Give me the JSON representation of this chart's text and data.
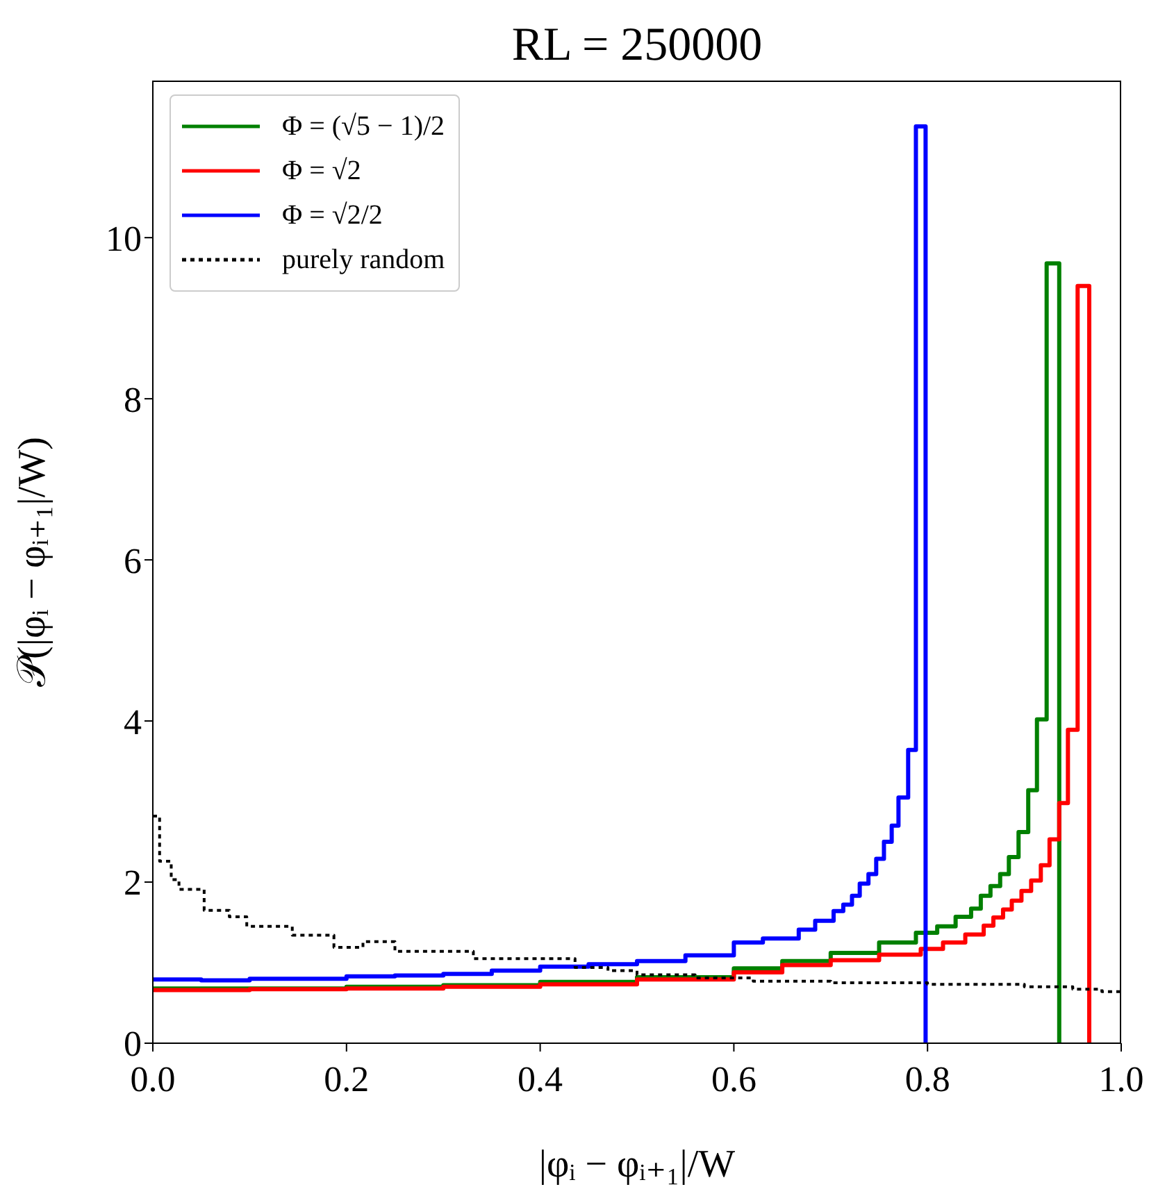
{
  "chart_data": {
    "type": "step",
    "title": "RL = 250000",
    "xlabel": "|φᵢ − φᵢ₊₁|/W",
    "ylabel": "𝒫(|φᵢ − φᵢ₊₁|/W)",
    "xlim": [
      0,
      1
    ],
    "ylim": [
      0,
      11.95
    ],
    "xticks": [
      {
        "value": 0,
        "label": "0.0"
      },
      {
        "value": 0.2,
        "label": "0.2"
      },
      {
        "value": 0.4,
        "label": "0.4"
      },
      {
        "value": 0.6,
        "label": "0.6"
      },
      {
        "value": 0.8,
        "label": "0.8"
      },
      {
        "value": 1,
        "label": "1.0"
      }
    ],
    "yticks": [
      0,
      2,
      4,
      6,
      8,
      10
    ],
    "legend": "top left",
    "marker": "none",
    "series": [
      {
        "name": "Φ = (√5 − 1)/2",
        "color": "#008000",
        "line_style": "solid",
        "x": [
          0,
          0.1,
          0.2,
          0.3,
          0.4,
          0.5,
          0.6,
          0.65,
          0.7,
          0.75,
          0.788,
          0.81,
          0.829,
          0.845,
          0.855,
          0.865,
          0.875,
          0.884,
          0.894,
          0.904,
          0.913,
          0.923,
          0.936
        ],
        "values": [
          0.68,
          0.68,
          0.7,
          0.72,
          0.76,
          0.82,
          0.93,
          1.02,
          1.12,
          1.25,
          1.37,
          1.45,
          1.57,
          1.67,
          1.83,
          1.95,
          2.1,
          2.31,
          2.62,
          3.14,
          4.02,
          9.68,
          0
        ]
      },
      {
        "name": "Φ = √2",
        "color": "#ff0000",
        "line_style": "solid",
        "x": [
          0,
          0.1,
          0.2,
          0.3,
          0.4,
          0.5,
          0.6,
          0.65,
          0.7,
          0.75,
          0.793,
          0.816,
          0.839,
          0.858,
          0.868,
          0.878,
          0.887,
          0.897,
          0.907,
          0.917,
          0.926,
          0.936,
          0.945,
          0.955,
          0.967
        ],
        "values": [
          0.66,
          0.67,
          0.68,
          0.7,
          0.73,
          0.79,
          0.88,
          0.97,
          1.03,
          1.1,
          1.17,
          1.25,
          1.35,
          1.46,
          1.56,
          1.66,
          1.77,
          1.89,
          2.02,
          2.21,
          2.53,
          2.98,
          3.89,
          9.4,
          0
        ]
      },
      {
        "name": "Φ = √2/2",
        "color": "#0000ff",
        "line_style": "solid",
        "x": [
          0,
          0.05,
          0.1,
          0.15,
          0.2,
          0.25,
          0.3,
          0.35,
          0.4,
          0.45,
          0.5,
          0.55,
          0.6,
          0.63,
          0.667,
          0.684,
          0.703,
          0.713,
          0.722,
          0.73,
          0.739,
          0.747,
          0.755,
          0.763,
          0.77,
          0.78,
          0.788,
          0.798
        ],
        "values": [
          0.79,
          0.78,
          0.8,
          0.8,
          0.83,
          0.84,
          0.86,
          0.9,
          0.95,
          0.98,
          1.02,
          1.09,
          1.25,
          1.3,
          1.41,
          1.52,
          1.64,
          1.72,
          1.83,
          1.98,
          2.1,
          2.29,
          2.5,
          2.7,
          3.05,
          3.64,
          11.38,
          0
        ]
      },
      {
        "name": "purely random",
        "color": "#000000",
        "line_style": "dotted",
        "x": [
          0,
          0.007,
          0.019,
          0.027,
          0.053,
          0.079,
          0.097,
          0.144,
          0.187,
          0.217,
          0.25,
          0.331,
          0.436,
          0.47,
          0.5,
          0.56,
          0.62,
          0.7,
          0.8,
          0.9,
          0.95,
          0.98,
          1
        ],
        "values": [
          2.82,
          2.26,
          2.03,
          1.91,
          1.65,
          1.57,
          1.45,
          1.34,
          1.19,
          1.26,
          1.14,
          1.05,
          0.94,
          0.9,
          0.85,
          0.81,
          0.77,
          0.75,
          0.73,
          0.7,
          0.67,
          0.64,
          0.64
        ]
      }
    ]
  }
}
